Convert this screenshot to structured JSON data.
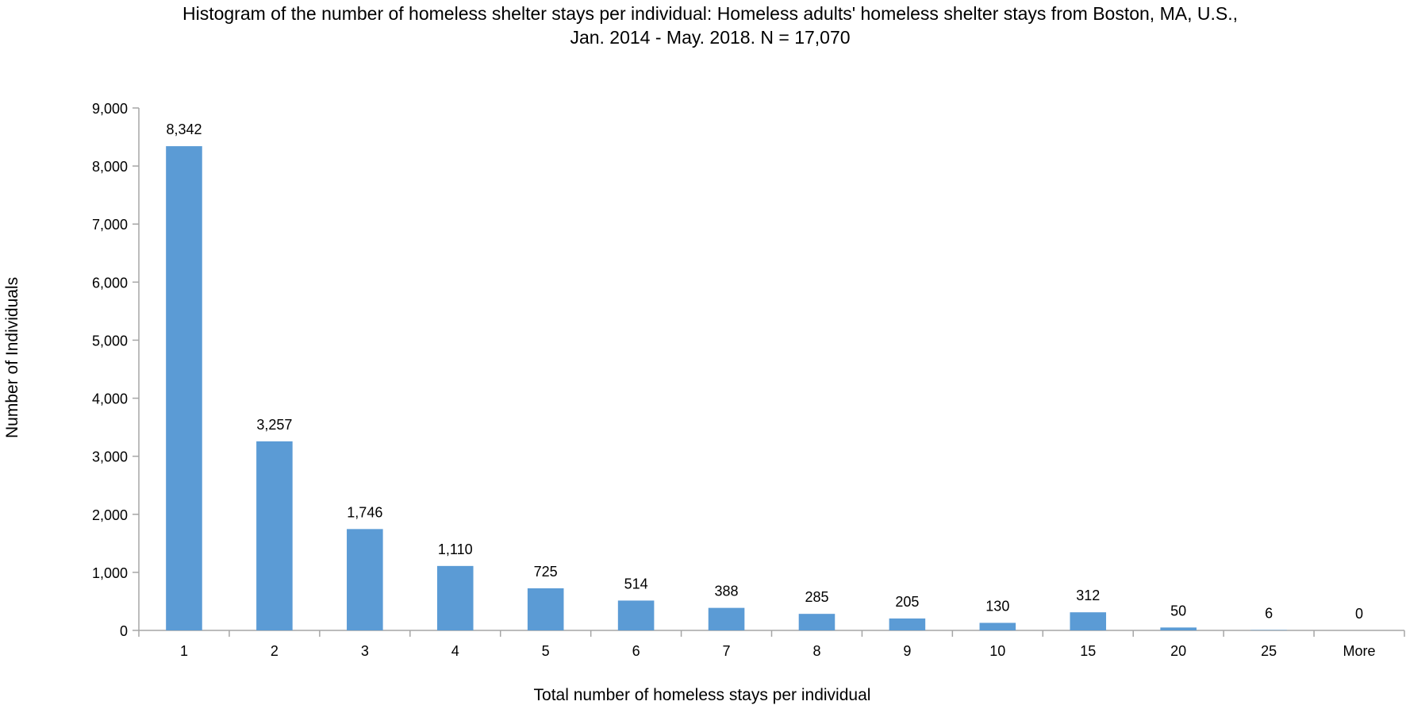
{
  "chart_data": {
    "type": "bar",
    "title": [
      "Histogram of the number of homeless shelter stays per individual: Homeless adults' homeless shelter stays from Boston, MA, U.S.,",
      "Jan. 2014 - May. 2018. N = 17,070"
    ],
    "xlabel": "Total number of homeless stays per individual",
    "ylabel": "Number of Individuals",
    "categories": [
      "1",
      "2",
      "3",
      "4",
      "5",
      "6",
      "7",
      "8",
      "9",
      "10",
      "15",
      "20",
      "25",
      "More"
    ],
    "values": [
      8342,
      3257,
      1746,
      1110,
      725,
      514,
      388,
      285,
      205,
      130,
      312,
      50,
      6,
      0
    ],
    "data_labels": [
      "8,342",
      "3,257",
      "1,746",
      "1,110",
      "725",
      "514",
      "388",
      "285",
      "205",
      "130",
      "312",
      "50",
      "6",
      "0"
    ],
    "ylim": [
      0,
      9000
    ],
    "yticks": [
      0,
      1000,
      2000,
      3000,
      4000,
      5000,
      6000,
      7000,
      8000,
      9000
    ],
    "ytick_labels": [
      "0",
      "1,000",
      "2,000",
      "3,000",
      "4,000",
      "5,000",
      "6,000",
      "7,000",
      "8,000",
      "9,000"
    ],
    "grid": false,
    "legend": "none",
    "bar_color": "#5B9BD5",
    "axis_color": "#A6A6A6"
  }
}
